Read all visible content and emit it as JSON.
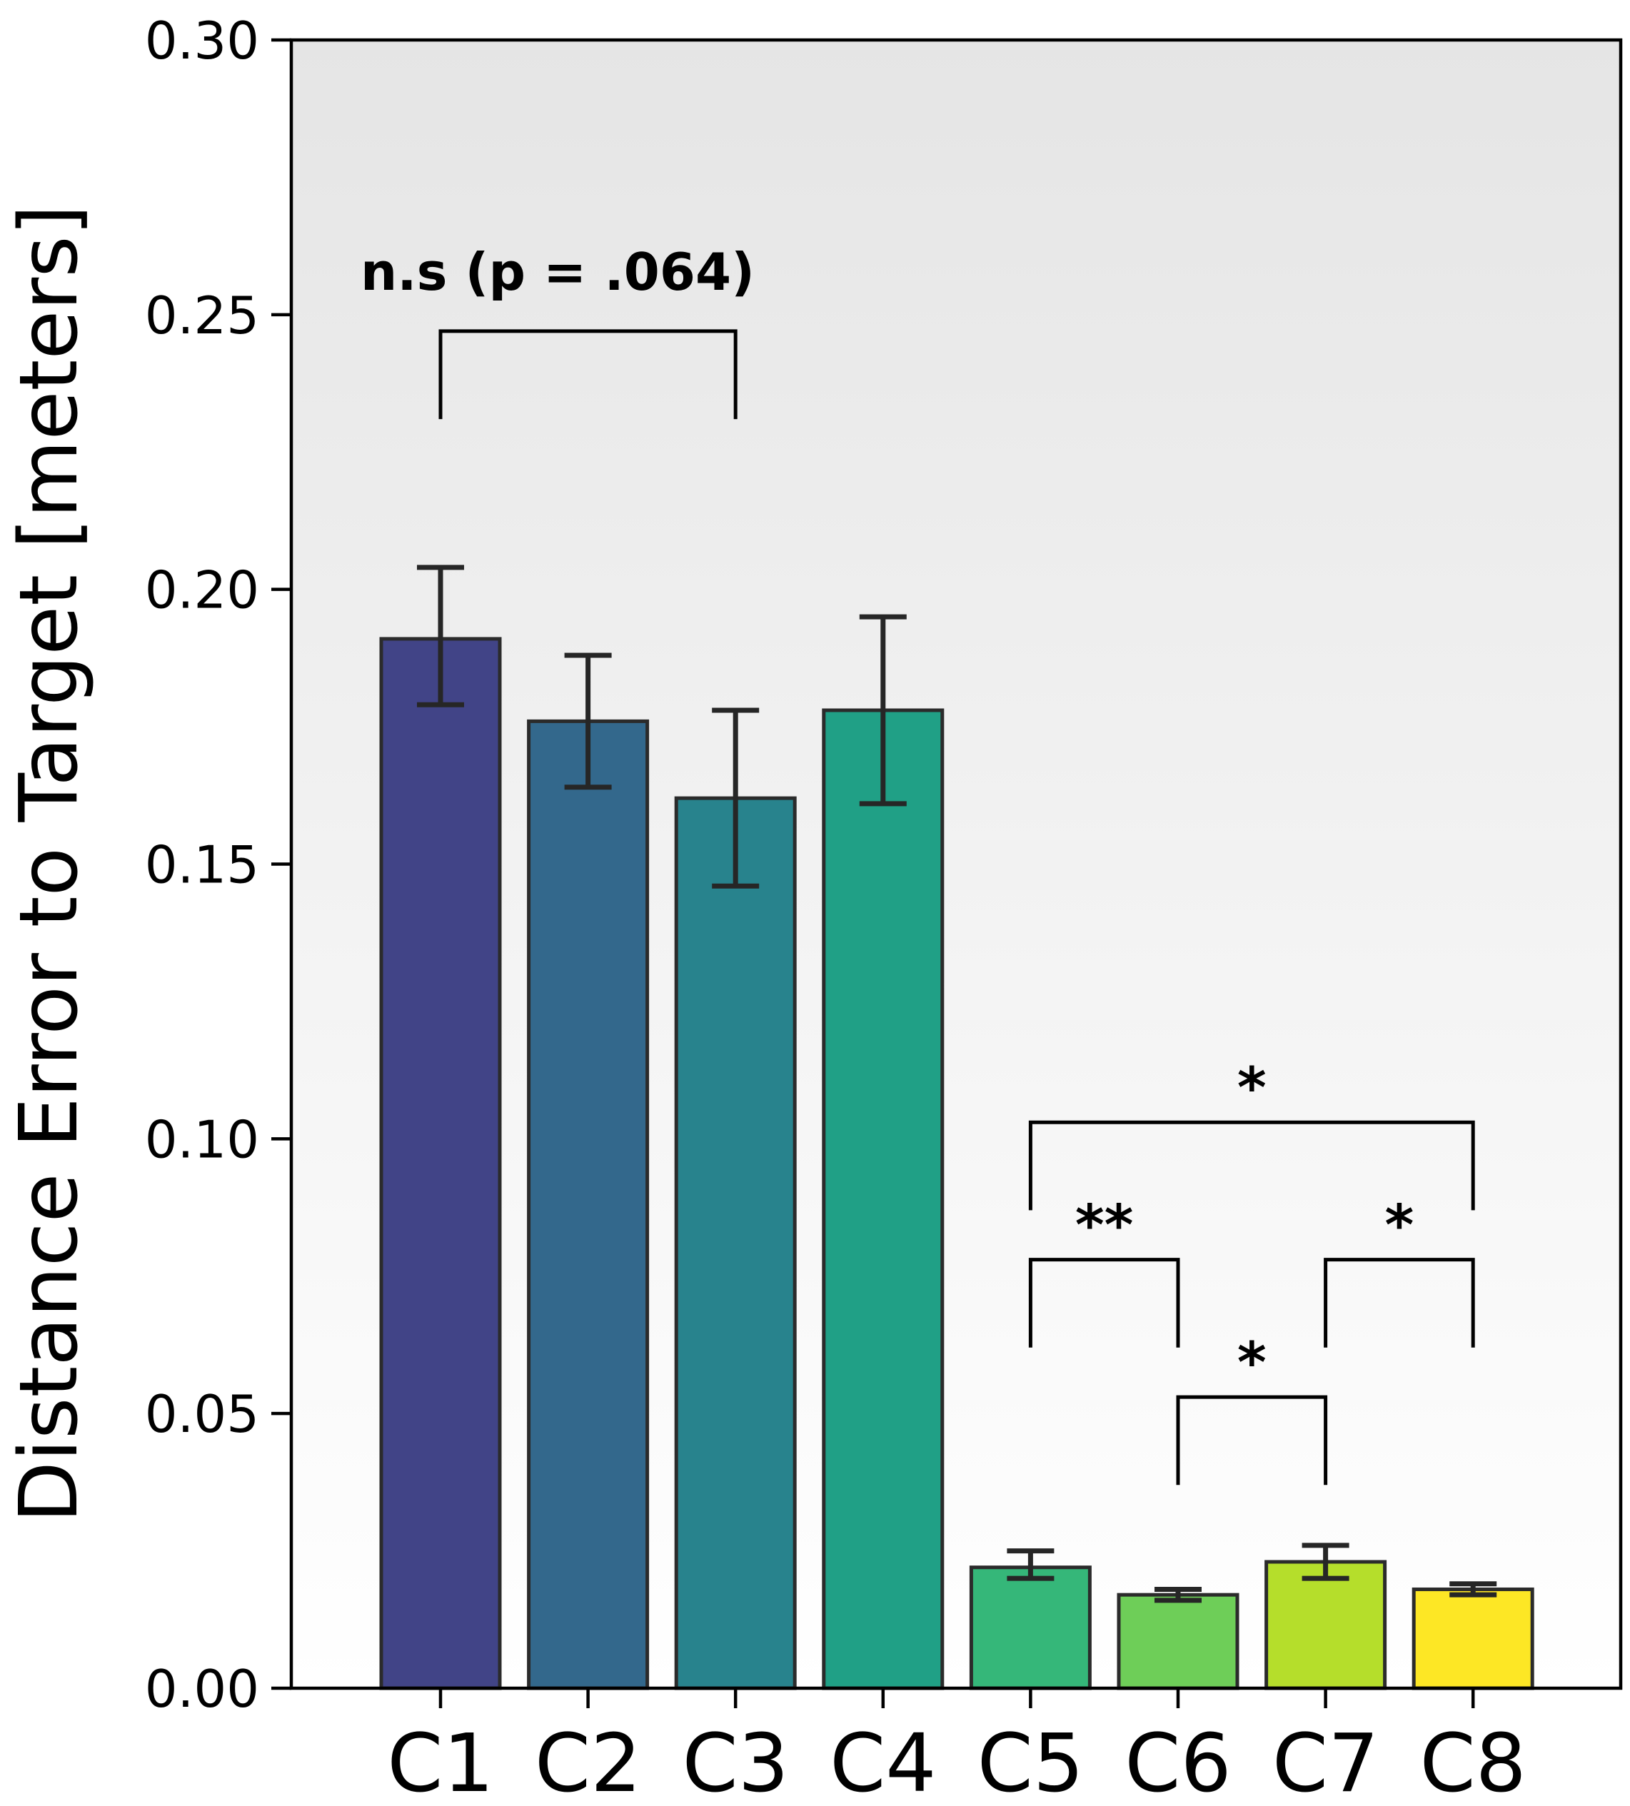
{
  "chart_data": {
    "type": "bar",
    "title": "",
    "xlabel": "",
    "ylabel": "Distance Error to Target [meters]",
    "ylim": [
      0,
      0.3
    ],
    "yticks": [
      "0.00",
      "0.05",
      "0.10",
      "0.15",
      "0.20",
      "0.25",
      "0.30"
    ],
    "ytick_values": [
      0,
      0.05,
      0.1,
      0.15,
      0.2,
      0.25,
      0.3
    ],
    "grid": false,
    "background_gradient": [
      "#e5e5e5",
      "#ffffff"
    ],
    "categories": [
      "C1",
      "C2",
      "C3",
      "C4",
      "C5",
      "C6",
      "C7",
      "C8"
    ],
    "values": [
      0.191,
      0.176,
      0.162,
      0.178,
      0.022,
      0.017,
      0.023,
      0.018
    ],
    "error_low": [
      0.179,
      0.164,
      0.146,
      0.161,
      0.02,
      0.016,
      0.02,
      0.017
    ],
    "error_high": [
      0.204,
      0.188,
      0.178,
      0.195,
      0.025,
      0.018,
      0.026,
      0.019
    ],
    "colors": [
      "#414487",
      "#33688c",
      "#28838d",
      "#20a086",
      "#35b779",
      "#6ece58",
      "#b5de2b",
      "#fde725"
    ],
    "annotations": [
      {
        "label": "n.s (p = .064)",
        "from": "C1",
        "to": "C3",
        "y_bar": 0.247,
        "y_drop": 0.231
      },
      {
        "label": "*",
        "from": "C5",
        "to": "C8",
        "y_bar": 0.103,
        "y_drop": 0.087
      },
      {
        "label": "**",
        "from": "C5",
        "to": "C6",
        "y_bar": 0.078,
        "y_drop": 0.062
      },
      {
        "label": "*",
        "from": "C7",
        "to": "C8",
        "y_bar": 0.078,
        "y_drop": 0.062
      },
      {
        "label": "*",
        "from": "C6",
        "to": "C7",
        "y_bar": 0.053,
        "y_drop": 0.037
      }
    ]
  }
}
